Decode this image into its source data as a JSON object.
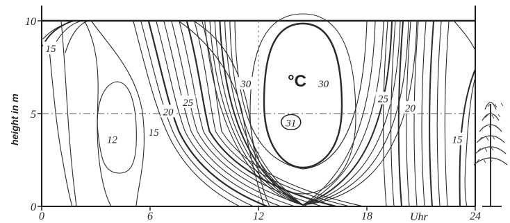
{
  "chart_data": {
    "type": "contour",
    "ylabel": "height in m",
    "x_unit_label": "Uhr",
    "unit_label": "°C",
    "xlim": [
      0,
      24
    ],
    "ylim": [
      0,
      10
    ],
    "x_ticks": [
      {
        "value": 0,
        "label": "0"
      },
      {
        "value": 6,
        "label": "6"
      },
      {
        "value": 12,
        "label": "12"
      },
      {
        "value": 18,
        "label": "18"
      },
      {
        "value": 24,
        "label": "24"
      }
    ],
    "y_ticks": [
      {
        "value": 0,
        "label": "0"
      },
      {
        "value": 5,
        "label": "5"
      },
      {
        "value": 10,
        "label": "10"
      }
    ],
    "reference_lines": [
      {
        "axis": "y",
        "value": 5,
        "style": "dash-dot"
      },
      {
        "axis": "x",
        "value": 12,
        "style": "dashed"
      }
    ],
    "contour_labels": [
      {
        "label": "15",
        "x": 0.5,
        "y": 8.5
      },
      {
        "label": "12",
        "x": 3.9,
        "y": 3.6
      },
      {
        "label": "15",
        "x": 6.2,
        "y": 4.0
      },
      {
        "label": "20",
        "x": 7.0,
        "y": 5.1
      },
      {
        "label": "25",
        "x": 8.1,
        "y": 5.6
      },
      {
        "label": "30",
        "x": 11.3,
        "y": 6.6
      },
      {
        "label": "30",
        "x": 15.6,
        "y": 6.6
      },
      {
        "label": "31",
        "x": 13.8,
        "y": 4.5,
        "circled": true
      },
      {
        "label": "25",
        "x": 18.9,
        "y": 5.8
      },
      {
        "label": "20",
        "x": 20.4,
        "y": 5.3
      },
      {
        "label": "15",
        "x": 23.0,
        "y": 3.6
      }
    ],
    "warm_core": {
      "label": "31",
      "center": [
        14.0,
        5.2
      ],
      "peak_temperature": 31
    },
    "cold_core": {
      "label": "12",
      "center": [
        3.9,
        4.0
      ],
      "min_temperature": 12
    },
    "grid": false,
    "decoration": "tree-sketch"
  }
}
